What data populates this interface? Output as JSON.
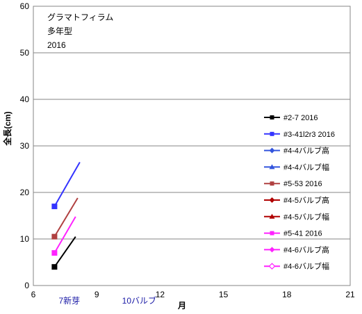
{
  "chart_data": {
    "type": "line",
    "title_lines": [
      "グラマトフィラム",
      "多年型",
      "2016"
    ],
    "xlabel": "月",
    "ylabel": "全長(cm)",
    "xlim": [
      6,
      21
    ],
    "ylim": [
      0,
      60
    ],
    "xticks": [
      6,
      9,
      12,
      15,
      18,
      21
    ],
    "yticks": [
      0,
      10,
      20,
      30,
      40,
      50,
      60
    ],
    "grid": "horizontal",
    "legend_position": "right",
    "annotations": [
      {
        "text": "7新芽",
        "x": 7.2,
        "color": "#1a1aa6"
      },
      {
        "text": "10バルブ",
        "x": 10.2,
        "color": "#1a1aa6"
      }
    ],
    "series": [
      {
        "name": "#2-7 2016",
        "color": "#000000",
        "marker": "square",
        "values": [
          [
            7,
            4
          ],
          [
            8.0,
            10.5
          ]
        ]
      },
      {
        "name": "#3-41l2r3 2016",
        "color": "#3333ff",
        "marker": "square",
        "values": [
          [
            7,
            17
          ],
          [
            8.2,
            26.5
          ]
        ]
      },
      {
        "name": "#4-4バルブ高",
        "color": "#3355dd",
        "marker": "diamond",
        "values": []
      },
      {
        "name": "#4-4バルブ幅",
        "color": "#3355dd",
        "marker": "triangle",
        "values": []
      },
      {
        "name": "#5-53 2016",
        "color": "#b04040",
        "marker": "square",
        "values": [
          [
            7,
            10.5
          ],
          [
            8.1,
            18.8
          ]
        ]
      },
      {
        "name": "#4-5バルブ高",
        "color": "#b00000",
        "marker": "diamond",
        "values": []
      },
      {
        "name": "#4-5バルブ幅",
        "color": "#b00000",
        "marker": "triangle",
        "values": []
      },
      {
        "name": "#5-41 2016",
        "color": "#ff22ff",
        "marker": "square",
        "values": [
          [
            7,
            7
          ],
          [
            8.0,
            14.8
          ]
        ]
      },
      {
        "name": "#4-6バルブ高",
        "color": "#ff22ff",
        "marker": "diamond",
        "values": []
      },
      {
        "name": "#4-6バルブ幅",
        "color": "#ff22ff",
        "marker": "diamond-open",
        "values": []
      }
    ]
  }
}
